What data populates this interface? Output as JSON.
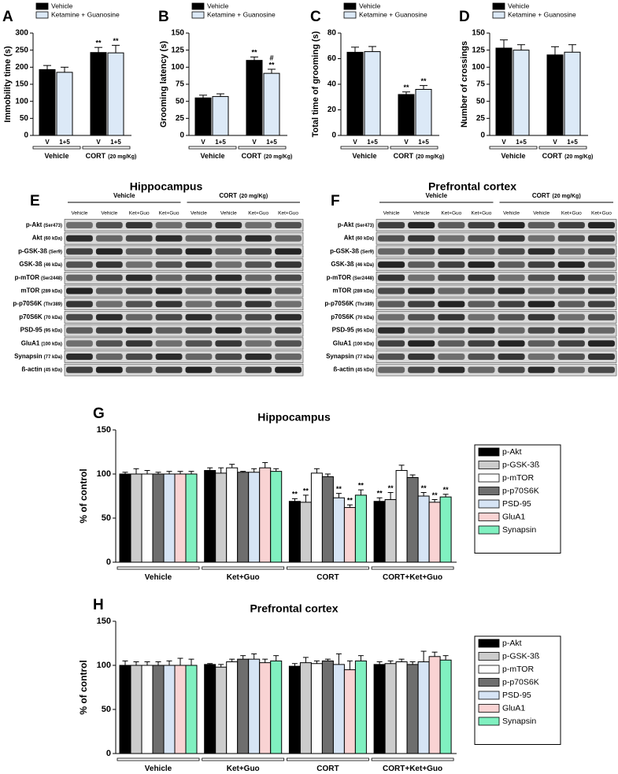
{
  "chart_data": [
    {
      "type": "bar",
      "panel": "A",
      "ylabel": "Immobility time (s)",
      "ylim": [
        0,
        300
      ],
      "yticks": [
        0,
        50,
        100,
        150,
        200,
        250,
        300
      ],
      "legend": "top",
      "groups": [
        {
          "name": "Vehicle"
        },
        {
          "name": "CORT",
          "dose": "(20 mg/Kg)"
        }
      ],
      "series": [
        {
          "name": "Vehicle",
          "short_label": "V",
          "color": "#000000",
          "values": [
            193,
            243
          ],
          "errors": [
            12,
            15
          ],
          "annotations": [
            [],
            [
              "**"
            ]
          ]
        },
        {
          "name": "Ketamine + Guanosine",
          "short_label": "1+5",
          "color": "#dce9f7",
          "values": [
            185,
            242
          ],
          "errors": [
            15,
            22
          ],
          "annotations": [
            [],
            [
              "**"
            ]
          ]
        }
      ]
    },
    {
      "type": "bar",
      "panel": "B",
      "ylabel": "Grooming latency (s)",
      "ylim": [
        0,
        150
      ],
      "yticks": [
        0,
        25,
        50,
        75,
        100,
        125,
        150
      ],
      "legend": "top",
      "groups": [
        {
          "name": "Vehicle"
        },
        {
          "name": "CORT",
          "dose": "(20 mg/Kg)"
        }
      ],
      "series": [
        {
          "name": "Vehicle",
          "short_label": "V",
          "color": "#000000",
          "values": [
            55,
            110
          ],
          "errors": [
            4,
            5
          ],
          "annotations": [
            [],
            [
              "**"
            ]
          ]
        },
        {
          "name": "Ketamine + Guanosine",
          "short_label": "1+5",
          "color": "#dce9f7",
          "values": [
            57,
            91
          ],
          "errors": [
            4,
            6
          ],
          "annotations": [
            [],
            [
              "#",
              "**"
            ]
          ]
        }
      ]
    },
    {
      "type": "bar",
      "panel": "C",
      "ylabel": "Total time of grooming (s)",
      "ylim": [
        0,
        80
      ],
      "yticks": [
        0,
        20,
        40,
        60,
        80
      ],
      "legend": "top",
      "groups": [
        {
          "name": "Vehicle"
        },
        {
          "name": "CORT",
          "dose": "(20 mg/Kg)"
        }
      ],
      "series": [
        {
          "name": "Vehicle",
          "short_label": "V",
          "color": "#000000",
          "values": [
            65,
            32
          ],
          "errors": [
            4,
            2
          ],
          "annotations": [
            [],
            [
              "**"
            ]
          ]
        },
        {
          "name": "Ketamine + Guanosine",
          "short_label": "1+5",
          "color": "#dce9f7",
          "values": [
            65.5,
            36
          ],
          "errors": [
            4,
            3
          ],
          "annotations": [
            [],
            [
              "**"
            ]
          ]
        }
      ]
    },
    {
      "type": "bar",
      "panel": "D",
      "ylabel": "Number of crossings",
      "ylim": [
        0,
        150
      ],
      "yticks": [
        0,
        25,
        50,
        75,
        100,
        125,
        150
      ],
      "legend": "top",
      "groups": [
        {
          "name": "Vehicle"
        },
        {
          "name": "CORT",
          "dose": "(20 mg/Kg)"
        }
      ],
      "series": [
        {
          "name": "Vehicle",
          "short_label": "V",
          "color": "#000000",
          "values": [
            128,
            118
          ],
          "errors": [
            12,
            12
          ],
          "annotations": [
            [],
            []
          ]
        },
        {
          "name": "Ketamine + Guanosine",
          "short_label": "1+5",
          "color": "#dce9f7",
          "values": [
            125,
            122
          ],
          "errors": [
            8,
            11
          ],
          "annotations": [
            [],
            []
          ]
        }
      ]
    },
    {
      "type": "bar",
      "panel": "G",
      "title": "Hippocampus",
      "ylabel": "% of control",
      "ylim": [
        0,
        150
      ],
      "yticks": [
        0,
        50,
        100,
        150
      ],
      "legend": "right",
      "groups": [
        {
          "name": "Vehicle"
        },
        {
          "name": "Ket+Guo"
        },
        {
          "name": "CORT"
        },
        {
          "name": "CORT+Ket+Guo"
        }
      ],
      "series": [
        {
          "name": "p-Akt",
          "color": "#000000",
          "values": [
            100,
            104,
            69,
            69
          ],
          "errors": [
            2,
            3,
            3,
            4
          ],
          "annotations": [
            [],
            [],
            [
              "**"
            ],
            [
              "**"
            ]
          ]
        },
        {
          "name": "p-GSK-3ß",
          "color": "#cccccc",
          "values": [
            100,
            101,
            68,
            71
          ],
          "errors": [
            6,
            6,
            8,
            8
          ],
          "annotations": [
            [],
            [],
            [
              "**"
            ],
            [
              "**"
            ]
          ]
        },
        {
          "name": "p-mTOR",
          "color": "#ffffff",
          "values": [
            100,
            107,
            101,
            104
          ],
          "errors": [
            4,
            4,
            5,
            6
          ],
          "annotations": [
            [],
            [],
            [],
            []
          ]
        },
        {
          "name": "p-p70S6K",
          "color": "#6e6e6e",
          "values": [
            100,
            102,
            97,
            96
          ],
          "errors": [
            2,
            1,
            3,
            3
          ],
          "annotations": [
            [],
            [],
            [],
            []
          ]
        },
        {
          "name": "PSD-95",
          "color": "#d6e4f5",
          "values": [
            100,
            102,
            73,
            75
          ],
          "errors": [
            3,
            4,
            5,
            4
          ],
          "annotations": [
            [],
            [],
            [
              "**"
            ],
            [
              "**"
            ]
          ]
        },
        {
          "name": "GluA1",
          "color": "#f9d3d3",
          "values": [
            100,
            107,
            62,
            68
          ],
          "errors": [
            3,
            6,
            3,
            3
          ],
          "annotations": [
            [],
            [],
            [
              "**"
            ],
            [
              "**"
            ]
          ]
        },
        {
          "name": "Synapsin",
          "color": "#80f0c0",
          "values": [
            100,
            103,
            76,
            74
          ],
          "errors": [
            3,
            3,
            6,
            3
          ],
          "annotations": [
            [],
            [],
            [
              "**"
            ],
            [
              "**"
            ]
          ]
        }
      ]
    },
    {
      "type": "bar",
      "panel": "H",
      "title": "Prefrontal cortex",
      "ylabel": "% of control",
      "ylim": [
        0,
        150
      ],
      "yticks": [
        0,
        50,
        100,
        150
      ],
      "legend": "right",
      "groups": [
        {
          "name": "Vehicle"
        },
        {
          "name": "Ket+Guo"
        },
        {
          "name": "CORT"
        },
        {
          "name": "CORT+Ket+Guo"
        }
      ],
      "series": [
        {
          "name": "p-Akt",
          "color": "#000000",
          "values": [
            100,
            101,
            99,
            101
          ],
          "errors": [
            5,
            1,
            3,
            3
          ],
          "annotations": [
            [],
            [],
            [],
            []
          ]
        },
        {
          "name": "p-GSK-3ß",
          "color": "#cccccc",
          "values": [
            100,
            98,
            103,
            102
          ],
          "errors": [
            4,
            3,
            6,
            3
          ],
          "annotations": [
            [],
            [],
            [],
            []
          ]
        },
        {
          "name": "p-mTOR",
          "color": "#ffffff",
          "values": [
            100,
            104,
            102,
            104
          ],
          "errors": [
            4,
            3,
            3,
            3
          ],
          "annotations": [
            [],
            [],
            [],
            []
          ]
        },
        {
          "name": "p-p70S6K",
          "color": "#6e6e6e",
          "values": [
            100,
            107,
            105,
            101
          ],
          "errors": [
            4,
            4,
            2,
            3
          ],
          "annotations": [
            [],
            [],
            [],
            []
          ]
        },
        {
          "name": "PSD-95",
          "color": "#d6e4f5",
          "values": [
            100,
            107,
            101,
            104
          ],
          "errors": [
            5,
            6,
            12,
            12
          ],
          "annotations": [
            [],
            [],
            [],
            []
          ]
        },
        {
          "name": "GluA1",
          "color": "#f9d3d3",
          "values": [
            100,
            103,
            95,
            110
          ],
          "errors": [
            8,
            4,
            10,
            5
          ],
          "annotations": [
            [],
            [],
            [],
            []
          ]
        },
        {
          "name": "Synapsin",
          "color": "#80f0c0",
          "values": [
            100,
            105,
            105,
            106
          ],
          "errors": [
            7,
            6,
            6,
            5
          ],
          "annotations": [
            [],
            [],
            [],
            []
          ]
        }
      ]
    }
  ],
  "blots": [
    {
      "panel": "E",
      "title": "Hippocampus",
      "groups": [
        {
          "name": "Vehicle"
        },
        {
          "name": "CORT",
          "dose": "(20 mg/Kg)"
        }
      ],
      "lanes": [
        "Vehicle",
        "Vehicle",
        "Ket+Guo",
        "Ket+Guo",
        "Vehicle",
        "Vehicle",
        "Ket+Guo",
        "Ket+Guo"
      ],
      "rows": [
        {
          "protein": "p-Akt",
          "detail": "(Ser473)"
        },
        {
          "protein": "Akt",
          "detail": "(60 kDa)"
        },
        {
          "protein": "p-GSK-3ß",
          "detail": "(Ser9)"
        },
        {
          "protein": "GSK-3ß",
          "detail": "(46 kDa)"
        },
        {
          "protein": "p-mTOR",
          "detail": "(Ser2448)"
        },
        {
          "protein": "mTOR",
          "detail": "(289 kDa)"
        },
        {
          "protein": "p-p70S6K",
          "detail": "(Thr389)"
        },
        {
          "protein": "p70S6K",
          "detail": "(70 kDa)"
        },
        {
          "protein": "PSD-95",
          "detail": "(95 kDa)"
        },
        {
          "protein": "GluA1",
          "detail": "(100 kDa)"
        },
        {
          "protein": "Synapsin",
          "detail": "(77 kDa)"
        },
        {
          "protein": "ß-actin",
          "detail": "(45 kDa)"
        }
      ]
    },
    {
      "panel": "F",
      "title": "Prefrontal cortex",
      "groups": [
        {
          "name": "Vehicle"
        },
        {
          "name": "CORT",
          "dose": "(20 mg/Kg)"
        }
      ],
      "lanes": [
        "Vehicle",
        "Vehicle",
        "Ket+Guo",
        "Ket+Guo",
        "Vehicle",
        "Vehicle",
        "Ket+Guo",
        "Ket+Guo"
      ],
      "rows": [
        {
          "protein": "p-Akt",
          "detail": "(Ser473)"
        },
        {
          "protein": "Akt",
          "detail": "(60 kDa)"
        },
        {
          "protein": "p-GSK-3ß",
          "detail": "(Ser9)"
        },
        {
          "protein": "GSK-3ß",
          "detail": "(46 kDa)"
        },
        {
          "protein": "p-mTOR",
          "detail": "(Ser2448)"
        },
        {
          "protein": "mTOR",
          "detail": "(289 kDa)"
        },
        {
          "protein": "p-p70S6K",
          "detail": "(Thr389)"
        },
        {
          "protein": "p70S6K",
          "detail": "(70 kDa)"
        },
        {
          "protein": "PSD-95",
          "detail": "(95 kDa)"
        },
        {
          "protein": "GluA1",
          "detail": "(100 kDa)"
        },
        {
          "protein": "Synapsin",
          "detail": "(77 kDa)"
        },
        {
          "protein": "ß-actin",
          "detail": "(45 kDa)"
        }
      ]
    }
  ]
}
